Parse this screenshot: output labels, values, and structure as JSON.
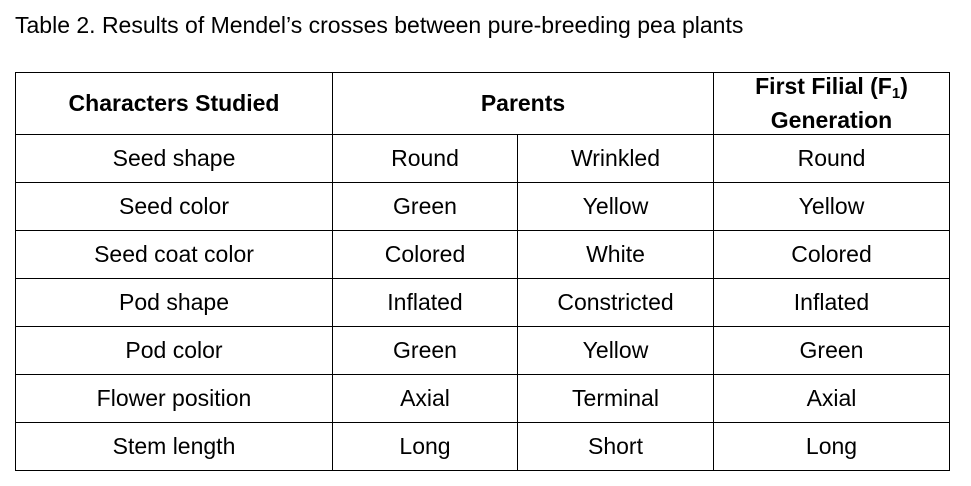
{
  "caption": "Table 2. Results of Mendel’s crosses between pure-breeding pea plants",
  "table": {
    "headers": {
      "characters": "Characters Studied",
      "parents": "Parents",
      "f1_prefix": "First Filial (F",
      "f1_sub": "1",
      "f1_suffix": ")",
      "f1_line2": "Generation"
    },
    "rows": [
      {
        "character": "Seed shape",
        "parent1": "Round",
        "parent2": "Wrinkled",
        "f1": "Round"
      },
      {
        "character": "Seed color",
        "parent1": "Green",
        "parent2": "Yellow",
        "f1": "Yellow"
      },
      {
        "character": "Seed coat color",
        "parent1": "Colored",
        "parent2": "White",
        "f1": "Colored"
      },
      {
        "character": "Pod shape",
        "parent1": "Inflated",
        "parent2": "Constricted",
        "f1": "Inflated"
      },
      {
        "character": "Pod color",
        "parent1": "Green",
        "parent2": "Yellow",
        "f1": "Green"
      },
      {
        "character": "Flower position",
        "parent1": "Axial",
        "parent2": "Terminal",
        "f1": "Axial"
      },
      {
        "character": "Stem length",
        "parent1": "Long",
        "parent2": "Short",
        "f1": "Long"
      }
    ]
  }
}
